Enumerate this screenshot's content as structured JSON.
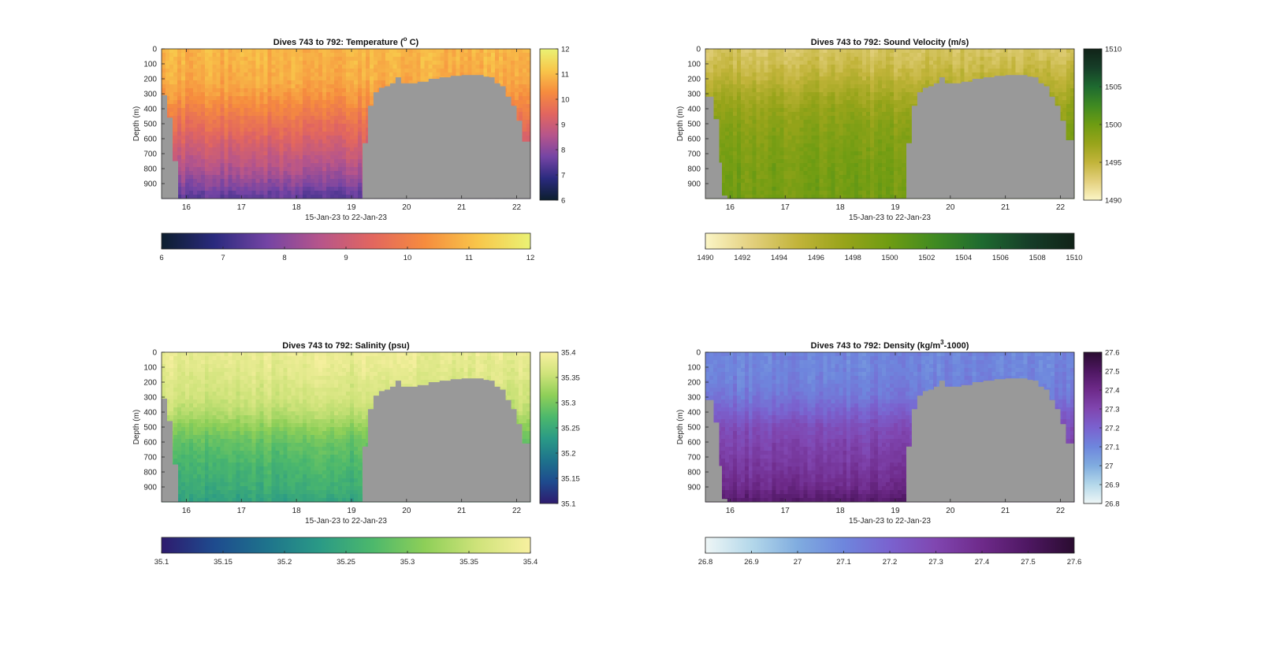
{
  "chart_data": [
    {
      "type": "heatmap",
      "title": "Dives 743 to 792: Temperature (° C)",
      "title_main": "Dives 743 to 792: Temperature (",
      "title_sup": "o",
      "title_end": " C)",
      "xlabel": "15-Jan-23 to 22-Jan-23",
      "ylabel": "Depth (m)",
      "x_ticks": [
        "16",
        "17",
        "18",
        "19",
        "20",
        "21",
        "22"
      ],
      "x_values": [
        16,
        17,
        18,
        19,
        20,
        21,
        22
      ],
      "xlim": [
        15.55,
        22.25
      ],
      "y_ticks": [
        "0",
        "100",
        "200",
        "300",
        "400",
        "500",
        "600",
        "700",
        "800",
        "900"
      ],
      "y_values": [
        0,
        100,
        200,
        300,
        400,
        500,
        600,
        700,
        800,
        900
      ],
      "ylim": [
        0,
        1000
      ],
      "colorbar": {
        "min": 6,
        "max": 12,
        "ticks": [
          "6",
          "7",
          "8",
          "9",
          "10",
          "11",
          "12"
        ],
        "stops": [
          "#0c1e2e",
          "#2a2a7e",
          "#7444a4",
          "#b6558b",
          "#e2665f",
          "#f68c3e",
          "#f8c64a",
          "#eaf274"
        ]
      },
      "profile": {
        "depths": [
          0,
          100,
          200,
          300,
          400,
          500,
          600,
          700,
          800,
          900,
          1000
        ],
        "values": [
          10.9,
          10.85,
          10.75,
          10.5,
          10.1,
          9.7,
          9.3,
          8.9,
          8.5,
          8.0,
          7.4
        ]
      },
      "seafloor": {
        "x": [
          15.55,
          15.65,
          15.75,
          15.85,
          15.95,
          16.05,
          19.1,
          19.2,
          19.3,
          19.4,
          19.5,
          19.6,
          19.7,
          19.8,
          19.9,
          20.0,
          20.2,
          20.4,
          20.6,
          20.8,
          21.0,
          21.2,
          21.4,
          21.5,
          21.6,
          21.7,
          21.8,
          21.9,
          22.0,
          22.1,
          22.25
        ],
        "depth": [
          310,
          460,
          750,
          1000,
          1000,
          1000,
          1000,
          630,
          380,
          290,
          260,
          250,
          230,
          190,
          230,
          230,
          220,
          200,
          190,
          180,
          175,
          175,
          185,
          190,
          230,
          250,
          320,
          380,
          480,
          620,
          620
        ]
      }
    },
    {
      "type": "heatmap",
      "title": "Dives 743 to 792: Sound Velocity (m/s)",
      "title_main": "Dives 743 to 792: Sound Velocity (m/s)",
      "title_sup": "",
      "title_end": "",
      "xlabel": "15-Jan-23 to 22-Jan-23",
      "ylabel": "Depth (m)",
      "x_ticks": [
        "16",
        "17",
        "18",
        "19",
        "20",
        "21",
        "22"
      ],
      "x_values": [
        16,
        17,
        18,
        19,
        20,
        21,
        22
      ],
      "xlim": [
        15.55,
        22.25
      ],
      "y_ticks": [
        "0",
        "100",
        "200",
        "300",
        "400",
        "500",
        "600",
        "700",
        "800",
        "900"
      ],
      "y_values": [
        0,
        100,
        200,
        300,
        400,
        500,
        600,
        700,
        800,
        900
      ],
      "ylim": [
        0,
        1000
      ],
      "colorbar": {
        "min": 1490,
        "max": 1510,
        "ticks": [
          "1490",
          "1495",
          "1500",
          "1505",
          "1510"
        ],
        "bottom_ticks": [
          "1490",
          "1492",
          "1494",
          "1496",
          "1498",
          "1500",
          "1502",
          "1504",
          "1506",
          "1508",
          "1510"
        ],
        "stops": [
          "#fbf5c6",
          "#e3d07e",
          "#c2b43a",
          "#98a41a",
          "#6e9c12",
          "#3f8a22",
          "#1e6a30",
          "#163e28",
          "#112318"
        ]
      },
      "profile": {
        "depths": [
          0,
          100,
          200,
          300,
          400,
          500,
          600,
          700,
          800,
          900,
          1000
        ],
        "values": [
          1493.5,
          1494.2,
          1495.3,
          1496.6,
          1497.6,
          1498.3,
          1498.8,
          1499.1,
          1499.4,
          1499.5,
          1499.6
        ]
      },
      "seafloor": {
        "x": [
          15.55,
          15.7,
          15.8,
          15.85,
          15.95,
          16.05,
          19.1,
          19.2,
          19.3,
          19.4,
          19.5,
          19.6,
          19.7,
          19.8,
          19.9,
          20.0,
          20.2,
          20.4,
          20.6,
          20.8,
          21.0,
          21.2,
          21.4,
          21.5,
          21.6,
          21.7,
          21.8,
          21.9,
          22.0,
          22.1,
          22.25
        ],
        "depth": [
          320,
          470,
          760,
          980,
          1000,
          1000,
          1000,
          630,
          380,
          290,
          260,
          250,
          230,
          190,
          230,
          230,
          220,
          200,
          190,
          180,
          175,
          175,
          185,
          190,
          230,
          250,
          320,
          380,
          480,
          610,
          610
        ]
      }
    },
    {
      "type": "heatmap",
      "title": "Dives 743 to 792: Salinity (psu)",
      "title_main": "Dives 743 to 792: Salinity (psu)",
      "title_sup": "",
      "title_end": "",
      "xlabel": "15-Jan-23 to 22-Jan-23",
      "ylabel": "Depth (m)",
      "x_ticks": [
        "16",
        "17",
        "18",
        "19",
        "20",
        "21",
        "22"
      ],
      "x_values": [
        16,
        17,
        18,
        19,
        20,
        21,
        22
      ],
      "xlim": [
        15.55,
        22.25
      ],
      "y_ticks": [
        "0",
        "100",
        "200",
        "300",
        "400",
        "500",
        "600",
        "700",
        "800",
        "900"
      ],
      "y_values": [
        0,
        100,
        200,
        300,
        400,
        500,
        600,
        700,
        800,
        900
      ],
      "ylim": [
        0,
        1000
      ],
      "colorbar": {
        "min": 35.1,
        "max": 35.4,
        "ticks": [
          "35.1",
          "35.15",
          "35.2",
          "35.25",
          "35.3",
          "35.35",
          "35.4"
        ],
        "stops": [
          "#2e1b6e",
          "#1e4b8e",
          "#1e738c",
          "#2a9a86",
          "#4cb86c",
          "#8ecf58",
          "#cfe37a",
          "#f8f0a0"
        ]
      },
      "profile": {
        "depths": [
          0,
          100,
          200,
          300,
          400,
          500,
          600,
          700,
          800,
          900,
          1000
        ],
        "values": [
          35.385,
          35.38,
          35.37,
          35.36,
          35.345,
          35.315,
          35.29,
          35.275,
          35.265,
          35.255,
          35.24
        ]
      },
      "seafloor": {
        "x": [
          15.55,
          15.65,
          15.75,
          15.85,
          15.95,
          16.05,
          19.1,
          19.2,
          19.3,
          19.4,
          19.5,
          19.6,
          19.7,
          19.8,
          19.9,
          20.0,
          20.2,
          20.4,
          20.6,
          20.8,
          21.0,
          21.2,
          21.4,
          21.5,
          21.6,
          21.7,
          21.8,
          21.9,
          22.0,
          22.1,
          22.25
        ],
        "depth": [
          310,
          460,
          750,
          1000,
          1000,
          1000,
          1000,
          630,
          380,
          290,
          260,
          250,
          230,
          190,
          230,
          230,
          220,
          200,
          190,
          180,
          175,
          175,
          185,
          190,
          230,
          250,
          320,
          380,
          480,
          610,
          610
        ]
      }
    },
    {
      "type": "heatmap",
      "title": "Dives 743 to 792: Density (kg/m³-1000)",
      "title_main": "Dives 743 to 792: Density (kg/m",
      "title_sup": "3",
      "title_end": "-1000)",
      "xlabel": "15-Jan-23 to 22-Jan-23",
      "ylabel": "Depth (m)",
      "x_ticks": [
        "16",
        "17",
        "18",
        "19",
        "20",
        "21",
        "22"
      ],
      "x_values": [
        16,
        17,
        18,
        19,
        20,
        21,
        22
      ],
      "xlim": [
        15.55,
        22.25
      ],
      "y_ticks": [
        "0",
        "100",
        "200",
        "300",
        "400",
        "500",
        "600",
        "700",
        "800",
        "900"
      ],
      "y_values": [
        0,
        100,
        200,
        300,
        400,
        500,
        600,
        700,
        800,
        900
      ],
      "ylim": [
        0,
        1000
      ],
      "colorbar": {
        "min": 26.8,
        "max": 27.6,
        "ticks": [
          "26.8",
          "26.9",
          "27",
          "27.1",
          "27.2",
          "27.3",
          "27.4",
          "27.5",
          "27.6"
        ],
        "stops": [
          "#eef6f6",
          "#b4d8ea",
          "#80acdf",
          "#6e86dd",
          "#7a62cf",
          "#8046b0",
          "#6e2a8a",
          "#4e1762",
          "#2a0c30"
        ]
      },
      "profile": {
        "depths": [
          0,
          100,
          200,
          300,
          400,
          500,
          600,
          700,
          800,
          900,
          1000
        ],
        "values": [
          27.1,
          27.1,
          27.11,
          27.14,
          27.2,
          27.27,
          27.3,
          27.33,
          27.36,
          27.4,
          27.48
        ]
      },
      "seafloor": {
        "x": [
          15.55,
          15.7,
          15.8,
          15.85,
          15.95,
          16.05,
          19.1,
          19.2,
          19.3,
          19.4,
          19.5,
          19.6,
          19.7,
          19.8,
          19.9,
          20.0,
          20.2,
          20.4,
          20.6,
          20.8,
          21.0,
          21.2,
          21.4,
          21.5,
          21.6,
          21.7,
          21.8,
          21.9,
          22.0,
          22.1,
          22.25
        ],
        "depth": [
          320,
          470,
          760,
          980,
          1000,
          1000,
          1000,
          630,
          380,
          290,
          260,
          250,
          230,
          190,
          230,
          230,
          220,
          200,
          190,
          180,
          175,
          175,
          185,
          190,
          230,
          250,
          320,
          380,
          480,
          610,
          610
        ]
      }
    }
  ],
  "colors": {
    "seafloor": "#999999",
    "axis": "#262626",
    "background": "#ffffff"
  }
}
